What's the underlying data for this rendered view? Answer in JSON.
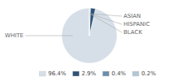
{
  "chart_data": {
    "type": "pie",
    "categories": [
      "WHITE",
      "ASIAN",
      "HISPANIC",
      "BLACK"
    ],
    "values": [
      96.4,
      2.9,
      0.4,
      0.2
    ],
    "value_labels": [
      "96.4%",
      "2.9%",
      "0.4%",
      "0.2%"
    ],
    "colors": [
      "#d6dfe8",
      "#2e5277",
      "#6b8fad",
      "#b2c6d6"
    ],
    "legend": "bottom"
  }
}
